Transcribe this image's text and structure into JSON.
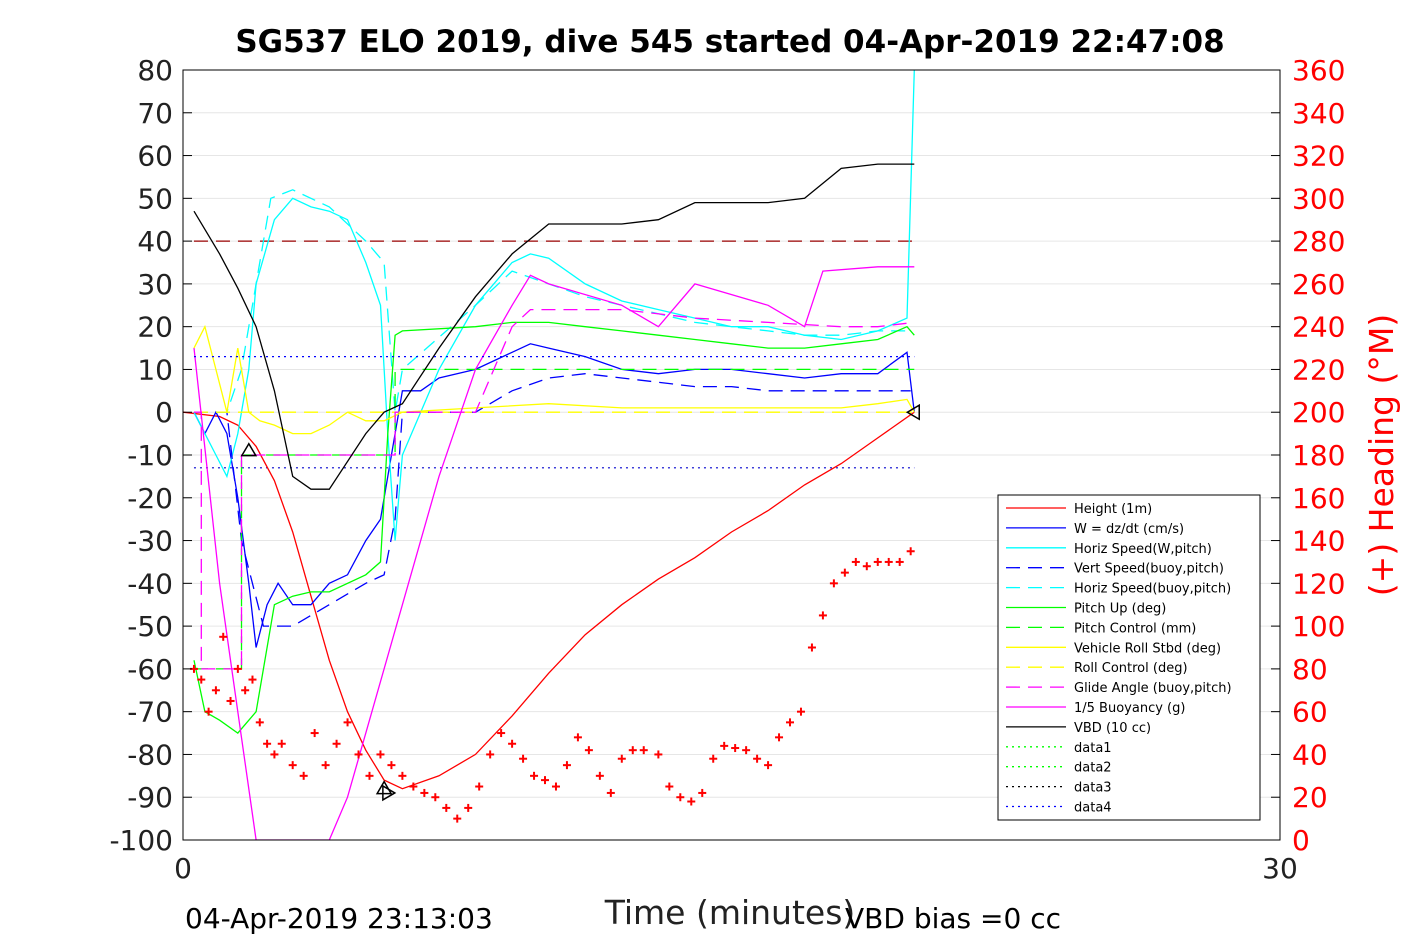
{
  "chart_data": {
    "type": "line",
    "title": "SG537 ELO 2019, dive 545 started 04-Apr-2019 22:47:08",
    "xlabel": "Time (minutes)",
    "ylabel_right": "(+) Heading (°M)",
    "xlim": [
      0,
      30
    ],
    "ylim_left": [
      -100,
      80
    ],
    "ylim_right": [
      0,
      360
    ],
    "x_ticks": [
      "0",
      "30"
    ],
    "y_ticks_left": [
      "80",
      "70",
      "60",
      "50",
      "40",
      "30",
      "20",
      "10",
      "0",
      "-10",
      "-20",
      "-30",
      "-40",
      "-50",
      "-60",
      "-70",
      "-80",
      "-90",
      "-100"
    ],
    "y_ticks_right": [
      "360",
      "340",
      "320",
      "300",
      "280",
      "260",
      "240",
      "220",
      "200",
      "180",
      "160",
      "140",
      "120",
      "100",
      "80",
      "60",
      "40",
      "20",
      "0"
    ],
    "footer_left": "04-Apr-2019 23:13:03",
    "footer_right": "VBD bias =0 cc",
    "grid": "horizontal",
    "legend_position": "lower-right inside",
    "colors": {
      "height": "#ff0000",
      "w": "#0000ff",
      "horiz": "#00ffff",
      "pitch": "#00ff00",
      "roll": "#ffff00",
      "glide": "#ff00ff",
      "vbd": "#000000",
      "heading": "#ff0000",
      "axis_right": "#ff0000"
    },
    "series": [
      {
        "name": "Height (1m)",
        "style": "solid",
        "color": "#ff0000",
        "x": [
          0,
          1,
          1.5,
          2,
          2.5,
          3,
          3.5,
          4,
          4.5,
          5,
          5.5,
          6,
          7,
          8,
          9,
          10,
          11,
          12,
          13,
          14,
          15,
          16,
          17,
          18,
          19,
          20
        ],
        "y": [
          0,
          -1,
          -3,
          -8,
          -16,
          -28,
          -43,
          -58,
          -70,
          -79,
          -86,
          -88,
          -85,
          -80,
          -71,
          -61,
          -52,
          -45,
          -39,
          -34,
          -28,
          -23,
          -17,
          -12,
          -6,
          0
        ]
      },
      {
        "name": "W = dz/dt (cm/s)",
        "style": "solid",
        "color": "#0000ff",
        "x": [
          0.3,
          0.6,
          0.9,
          1.2,
          1.5,
          1.8,
          2,
          2.3,
          2.6,
          3,
          3.5,
          4,
          4.5,
          5,
          5.4,
          5.6,
          5.8,
          6,
          6.5,
          7,
          8,
          9,
          9.5,
          10,
          11,
          12,
          13,
          14,
          15,
          16,
          17,
          18,
          19,
          19.8,
          20
        ],
        "y": [
          0,
          -5,
          0,
          -5,
          -20,
          -40,
          -55,
          -45,
          -40,
          -45,
          -45,
          -40,
          -38,
          -30,
          -25,
          -15,
          -5,
          5,
          5,
          8,
          10,
          14,
          16,
          15,
          13,
          10,
          9,
          10,
          10,
          9,
          8,
          9,
          9,
          14,
          0
        ]
      },
      {
        "name": "Horiz Speed(W,pitch)",
        "style": "solid",
        "color": "#00ffff",
        "x": [
          0.3,
          0.6,
          0.9,
          1.2,
          1.5,
          1.8,
          2,
          2.5,
          3,
          3.5,
          4,
          4.5,
          5,
          5.4,
          5.6,
          5.8,
          6,
          7,
          8,
          9,
          9.5,
          10,
          11,
          12,
          13,
          14,
          15,
          16,
          17,
          18,
          19,
          19.8,
          20
        ],
        "y": [
          0,
          -5,
          -10,
          -15,
          -5,
          10,
          30,
          45,
          50,
          48,
          47,
          45,
          35,
          25,
          -5,
          -30,
          -10,
          10,
          25,
          35,
          37,
          36,
          30,
          26,
          24,
          22,
          20,
          20,
          18,
          17,
          19,
          22,
          80
        ]
      },
      {
        "name": "Vert Speed(buoy,pitch)",
        "style": "dashed",
        "color": "#0000ff",
        "x": [
          0.3,
          1.2,
          1.6,
          2.2,
          3,
          4,
          5,
          5.5,
          5.8,
          6,
          8,
          9,
          10,
          11,
          12,
          13,
          14,
          15,
          16,
          17,
          18,
          19,
          19.9
        ],
        "y": [
          0,
          0,
          -30,
          -50,
          -50,
          -45,
          -40,
          -38,
          -25,
          0,
          0,
          5,
          8,
          9,
          8,
          7,
          6,
          6,
          5,
          5,
          5,
          5,
          5
        ]
      },
      {
        "name": "Horiz Speed(buoy,pitch)",
        "style": "dashed",
        "color": "#00ffff",
        "x": [
          0.3,
          1.2,
          1.6,
          2,
          2.4,
          3,
          4,
          5,
          5.5,
          5.8,
          6,
          8,
          9,
          10,
          11,
          12,
          13,
          14,
          15,
          16,
          17,
          18,
          19,
          19.9
        ],
        "y": [
          0,
          0,
          10,
          30,
          50,
          52,
          48,
          40,
          35,
          0,
          10,
          25,
          33,
          30,
          27,
          25,
          23,
          21,
          20,
          19,
          18,
          18,
          19,
          19
        ]
      },
      {
        "name": "Pitch Up (deg)",
        "style": "solid",
        "color": "#00ff00",
        "x": [
          0.3,
          0.6,
          1,
          1.5,
          2,
          2.5,
          3,
          3.5,
          4,
          5,
          5.4,
          5.6,
          5.8,
          6,
          8,
          9,
          10,
          11,
          12,
          13,
          14,
          15,
          16,
          17,
          18,
          19,
          19.8,
          20
        ],
        "y": [
          -58,
          -70,
          -72,
          -75,
          -70,
          -45,
          -43,
          -42,
          -42,
          -38,
          -35,
          -5,
          18,
          19,
          20,
          21,
          21,
          20,
          19,
          18,
          17,
          16,
          15,
          15,
          16,
          17,
          20,
          18
        ]
      },
      {
        "name": "Pitch Control (mm)",
        "style": "dashed",
        "color": "#00ff00",
        "x": [
          0.3,
          1.6,
          1.6,
          3,
          5.8,
          5.8,
          20
        ],
        "y": [
          -60,
          -60,
          -10,
          -10,
          -10,
          10,
          10
        ]
      },
      {
        "name": "Vehicle Roll Stbd (deg)",
        "style": "solid",
        "color": "#ffff00",
        "x": [
          0.3,
          0.6,
          0.9,
          1.2,
          1.5,
          1.8,
          2.1,
          2.5,
          3,
          3.5,
          4,
          4.5,
          5,
          5.5,
          6,
          8,
          10,
          12,
          14,
          16,
          18,
          19,
          19.8,
          20
        ],
        "y": [
          15,
          20,
          10,
          0,
          15,
          0,
          -2,
          -3,
          -5,
          -5,
          -3,
          0,
          -2,
          -2,
          0,
          1,
          2,
          1,
          1,
          1,
          1,
          2,
          3,
          0
        ]
      },
      {
        "name": "Roll Control (deg)",
        "style": "dashed",
        "color": "#ffff00",
        "x": [
          0.3,
          20
        ],
        "y": [
          0,
          0
        ]
      },
      {
        "name": "Glide Angle (buoy,pitch)",
        "style": "dashed",
        "color": "#ff00ff",
        "x": [
          0.3,
          0.5,
          0.5,
          1.6,
          1.6,
          5.8,
          5.8,
          8,
          9,
          9.5,
          12,
          14,
          16,
          18,
          19,
          20
        ],
        "y": [
          0,
          0,
          -60,
          -60,
          -10,
          -10,
          0,
          0,
          20,
          24,
          24,
          22,
          21,
          20,
          20,
          21
        ]
      },
      {
        "name": "1/5 Buoyancy (g)",
        "style": "solid",
        "color": "#ff00ff",
        "x": [
          0.3,
          1,
          1.5,
          2,
          2.2,
          3.8,
          4,
          4.5,
          5,
          6,
          7,
          8,
          9,
          9.5,
          10,
          12,
          13,
          14,
          16,
          17,
          17.5,
          19,
          20
        ],
        "y": [
          15,
          -40,
          -70,
          -100,
          -100,
          -100,
          -100,
          -90,
          -75,
          -45,
          -15,
          10,
          25,
          32,
          30,
          25,
          20,
          30,
          25,
          20,
          33,
          34,
          34
        ]
      },
      {
        "name": "VBD (10 cc)",
        "style": "solid",
        "color": "#000000",
        "x": [
          0.3,
          1,
          1.5,
          2,
          2.5,
          3,
          3.5,
          4,
          5,
          5.5,
          6,
          7,
          8,
          9,
          10,
          11,
          12,
          13,
          14,
          15,
          16,
          17,
          18,
          19,
          20
        ],
        "y": [
          47,
          37,
          29,
          20,
          5,
          -15,
          -18,
          -18,
          -5,
          0,
          2,
          15,
          27,
          37,
          44,
          44,
          44,
          45,
          49,
          49,
          49,
          50,
          57,
          58,
          58
        ]
      },
      {
        "name": "data1",
        "style": "dotted",
        "color": "#00ff00",
        "x": [],
        "y": []
      },
      {
        "name": "data2",
        "style": "dotted",
        "color": "#00ff00",
        "x": [],
        "y": []
      },
      {
        "name": "data3",
        "style": "dotted",
        "color": "#000000",
        "x": [],
        "y": []
      },
      {
        "name": "data4",
        "style": "dotted",
        "color": "#0000ff",
        "x": [
          0.3,
          20
        ],
        "y": [
          13,
          13
        ]
      }
    ],
    "reference_lines": [
      {
        "y": 40,
        "color": "#990000",
        "style": "dashed"
      },
      {
        "y": -13,
        "color": "#0000cc",
        "style": "dotted"
      }
    ],
    "markers": [
      {
        "x": 1.8,
        "y": -9,
        "shape": "triangle-up"
      },
      {
        "x": 5.5,
        "y": -88,
        "shape": "triangle-up"
      },
      {
        "x": 5.6,
        "y": -89,
        "shape": "triangle-right"
      },
      {
        "x": 20,
        "y": 0,
        "shape": "triangle-left"
      }
    ],
    "heading_series": {
      "name": "(+) Heading (°M)",
      "axis": "right",
      "marker": "+",
      "x": [
        0.3,
        0.5,
        0.7,
        0.9,
        1.1,
        1.3,
        1.5,
        1.7,
        1.9,
        2.1,
        2.3,
        2.5,
        2.7,
        3,
        3.3,
        3.6,
        3.9,
        4.2,
        4.5,
        4.8,
        5.1,
        5.4,
        5.7,
        6,
        6.3,
        6.6,
        6.9,
        7.2,
        7.5,
        7.8,
        8.1,
        8.4,
        8.7,
        9,
        9.3,
        9.6,
        9.9,
        10.2,
        10.5,
        10.8,
        11.1,
        11.4,
        11.7,
        12,
        12.3,
        12.6,
        13,
        13.3,
        13.6,
        13.9,
        14.2,
        14.5,
        14.8,
        15.1,
        15.4,
        15.7,
        16,
        16.3,
        16.6,
        16.9,
        17.2,
        17.5,
        17.8,
        18.1,
        18.4,
        18.7,
        19,
        19.3,
        19.6,
        19.9
      ],
      "y": [
        80,
        75,
        60,
        70,
        95,
        65,
        80,
        70,
        75,
        55,
        45,
        40,
        45,
        35,
        30,
        50,
        35,
        45,
        55,
        40,
        30,
        40,
        35,
        30,
        25,
        22,
        20,
        15,
        10,
        15,
        25,
        40,
        50,
        45,
        38,
        30,
        28,
        25,
        35,
        48,
        42,
        30,
        22,
        38,
        42,
        42,
        40,
        25,
        20,
        18,
        22,
        38,
        44,
        43,
        42,
        38,
        35,
        48,
        55,
        60,
        90,
        105,
        120,
        125,
        130,
        128,
        130,
        130,
        130,
        135
      ]
    }
  }
}
